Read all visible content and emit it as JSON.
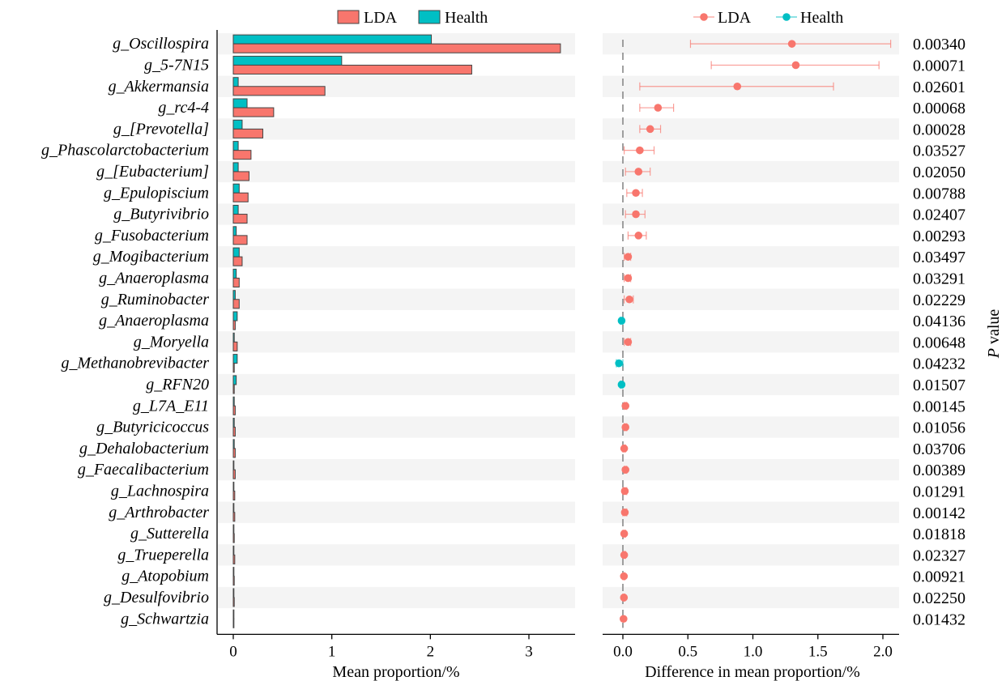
{
  "chart_data": [
    {
      "type": "bar",
      "orientation": "horizontal",
      "xlabel": "Mean proportion/%",
      "xlim": [
        0,
        3.5
      ],
      "xticks": [
        "0",
        "1",
        "2",
        "3"
      ],
      "legend_position": "top",
      "categories": [
        "g_Oscillospira",
        "g_5-7N15",
        "g_Akkermansia",
        "g_rc4-4",
        "g_[Prevotella]",
        "g_Phascolarctobacterium",
        "g_[Eubacterium]",
        "g_Epulopiscium",
        "g_Butyrivibrio",
        "g_Fusobacterium",
        "g_Mogibacterium",
        "g_Anaeroplasma",
        "g_Ruminobacter",
        "g_Anaeroplasma",
        "g_Moryella",
        "g_Methanobrevibacter",
        "g_RFN20",
        "g_L7A_E11",
        "g_Butyricicoccus",
        "g_Dehalobacterium",
        "g_Faecalibacterium",
        "g_Lachnospira",
        "g_Arthrobacter",
        "g_Sutterella",
        "g_Trueperella",
        "g_Atopobium",
        "g_Desulfovibrio",
        "g_Schwartzia"
      ],
      "series": [
        {
          "name": "LDA",
          "color": "#F8766D",
          "values": [
            3.32,
            2.42,
            0.93,
            0.41,
            0.3,
            0.18,
            0.16,
            0.15,
            0.14,
            0.14,
            0.09,
            0.06,
            0.06,
            0.02,
            0.04,
            0.01,
            0.01,
            0.02,
            0.02,
            0.02,
            0.02,
            0.015,
            0.015,
            0.01,
            0.015,
            0.01,
            0.01,
            0.005
          ]
        },
        {
          "name": "Health",
          "color": "#00BFC4",
          "values": [
            2.01,
            1.1,
            0.05,
            0.14,
            0.09,
            0.05,
            0.05,
            0.06,
            0.05,
            0.03,
            0.06,
            0.03,
            0.02,
            0.04,
            0.01,
            0.04,
            0.03,
            0.01,
            0.01,
            0.01,
            0.005,
            0.005,
            0.005,
            0.005,
            0.003,
            0.005,
            0.005,
            0.003
          ]
        }
      ]
    },
    {
      "type": "scatter",
      "subtype": "errorbar",
      "xlabel": "Difference in mean proportion/%",
      "ylabel": "P value",
      "xlim": [
        -0.15,
        2.15
      ],
      "xticks": [
        "0.0",
        "0.5",
        "1.0",
        "1.5",
        "2.0"
      ],
      "legend_position": "top",
      "legend": [
        {
          "name": "LDA",
          "color": "#F8766D"
        },
        {
          "name": "Health",
          "color": "#00BFC4"
        }
      ],
      "points": [
        {
          "group": "LDA",
          "diff": 1.3,
          "ci": [
            0.52,
            2.06
          ],
          "p": "0.00340"
        },
        {
          "group": "LDA",
          "diff": 1.33,
          "ci": [
            0.68,
            1.97
          ],
          "p": "0.00071"
        },
        {
          "group": "LDA",
          "diff": 0.88,
          "ci": [
            0.13,
            1.62
          ],
          "p": "0.02601"
        },
        {
          "group": "LDA",
          "diff": 0.27,
          "ci": [
            0.13,
            0.39
          ],
          "p": "0.00068"
        },
        {
          "group": "LDA",
          "diff": 0.21,
          "ci": [
            0.13,
            0.29
          ],
          "p": "0.00028"
        },
        {
          "group": "LDA",
          "diff": 0.13,
          "ci": [
            0.01,
            0.24
          ],
          "p": "0.03527"
        },
        {
          "group": "LDA",
          "diff": 0.12,
          "ci": [
            0.02,
            0.21
          ],
          "p": "0.02050"
        },
        {
          "group": "LDA",
          "diff": 0.1,
          "ci": [
            0.03,
            0.15
          ],
          "p": "0.00788"
        },
        {
          "group": "LDA",
          "diff": 0.1,
          "ci": [
            0.02,
            0.17
          ],
          "p": "0.02407"
        },
        {
          "group": "LDA",
          "diff": 0.12,
          "ci": [
            0.04,
            0.18
          ],
          "p": "0.00293"
        },
        {
          "group": "LDA",
          "diff": 0.04,
          "ci": [
            0.01,
            0.06
          ],
          "p": "0.03497"
        },
        {
          "group": "LDA",
          "diff": 0.04,
          "ci": [
            0.01,
            0.06
          ],
          "p": "0.03291"
        },
        {
          "group": "LDA",
          "diff": 0.05,
          "ci": [
            0.01,
            0.08
          ],
          "p": "0.02229"
        },
        {
          "group": "Health",
          "diff": -0.01,
          "ci": [
            -0.02,
            0.0
          ],
          "p": "0.04136"
        },
        {
          "group": "LDA",
          "diff": 0.04,
          "ci": [
            0.01,
            0.06
          ],
          "p": "0.00648"
        },
        {
          "group": "Health",
          "diff": -0.03,
          "ci": [
            -0.05,
            0.0
          ],
          "p": "0.04232"
        },
        {
          "group": "Health",
          "diff": -0.01,
          "ci": [
            -0.02,
            0.0
          ],
          "p": "0.01507"
        },
        {
          "group": "LDA",
          "diff": 0.02,
          "ci": [
            0.01,
            0.03
          ],
          "p": "0.00145"
        },
        {
          "group": "LDA",
          "diff": 0.02,
          "ci": [
            0.01,
            0.03
          ],
          "p": "0.01056"
        },
        {
          "group": "LDA",
          "diff": 0.01,
          "ci": [
            0.0,
            0.02
          ],
          "p": "0.03706"
        },
        {
          "group": "LDA",
          "diff": 0.02,
          "ci": [
            0.01,
            0.03
          ],
          "p": "0.00389"
        },
        {
          "group": "LDA",
          "diff": 0.015,
          "ci": [
            0.0,
            0.03
          ],
          "p": "0.01291"
        },
        {
          "group": "LDA",
          "diff": 0.015,
          "ci": [
            0.0,
            0.03
          ],
          "p": "0.00142"
        },
        {
          "group": "LDA",
          "diff": 0.01,
          "ci": [
            0.0,
            0.02
          ],
          "p": "0.01818"
        },
        {
          "group": "LDA",
          "diff": 0.01,
          "ci": [
            0.0,
            0.02
          ],
          "p": "0.02327"
        },
        {
          "group": "LDA",
          "diff": 0.008,
          "ci": [
            0.0,
            0.015
          ],
          "p": "0.00921"
        },
        {
          "group": "LDA",
          "diff": 0.008,
          "ci": [
            0.0,
            0.015
          ],
          "p": "0.02250"
        },
        {
          "group": "LDA",
          "diff": 0.005,
          "ci": [
            0.0,
            0.01
          ],
          "p": "0.01432"
        }
      ]
    }
  ]
}
